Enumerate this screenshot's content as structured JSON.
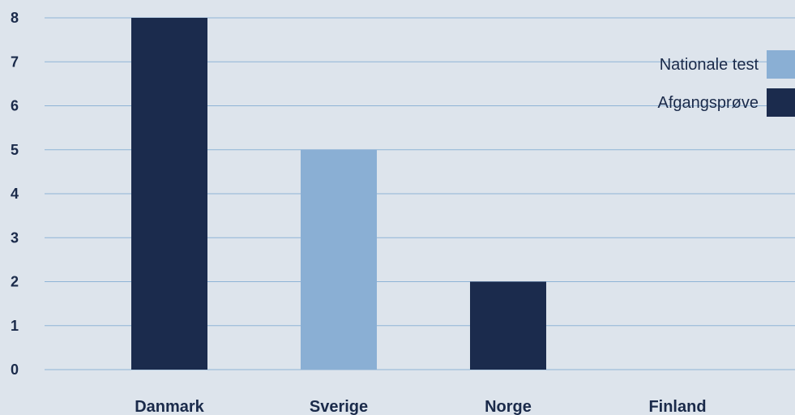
{
  "chart_data": {
    "type": "bar",
    "categories": [
      "Danmark",
      "Sverige",
      "Norge",
      "Finland"
    ],
    "values": [
      8,
      5,
      2,
      0
    ],
    "bar_series": [
      "Afgangsprøve",
      "Nationale test",
      "Afgangsprøve",
      null
    ],
    "yticks": [
      "0",
      "1",
      "2",
      "3",
      "4",
      "5",
      "6",
      "7",
      "8"
    ],
    "ylim": [
      0,
      8
    ],
    "grid": true,
    "legend_position": "top-right",
    "series": [
      {
        "name": "Nationale test",
        "color": "#8aafd4"
      },
      {
        "name": "Afgangsprøve",
        "color": "#1b2b4d"
      }
    ],
    "colors": {
      "background": "#dde4ec",
      "grid": "#8fb3d6",
      "text": "#1a2a4a"
    }
  }
}
